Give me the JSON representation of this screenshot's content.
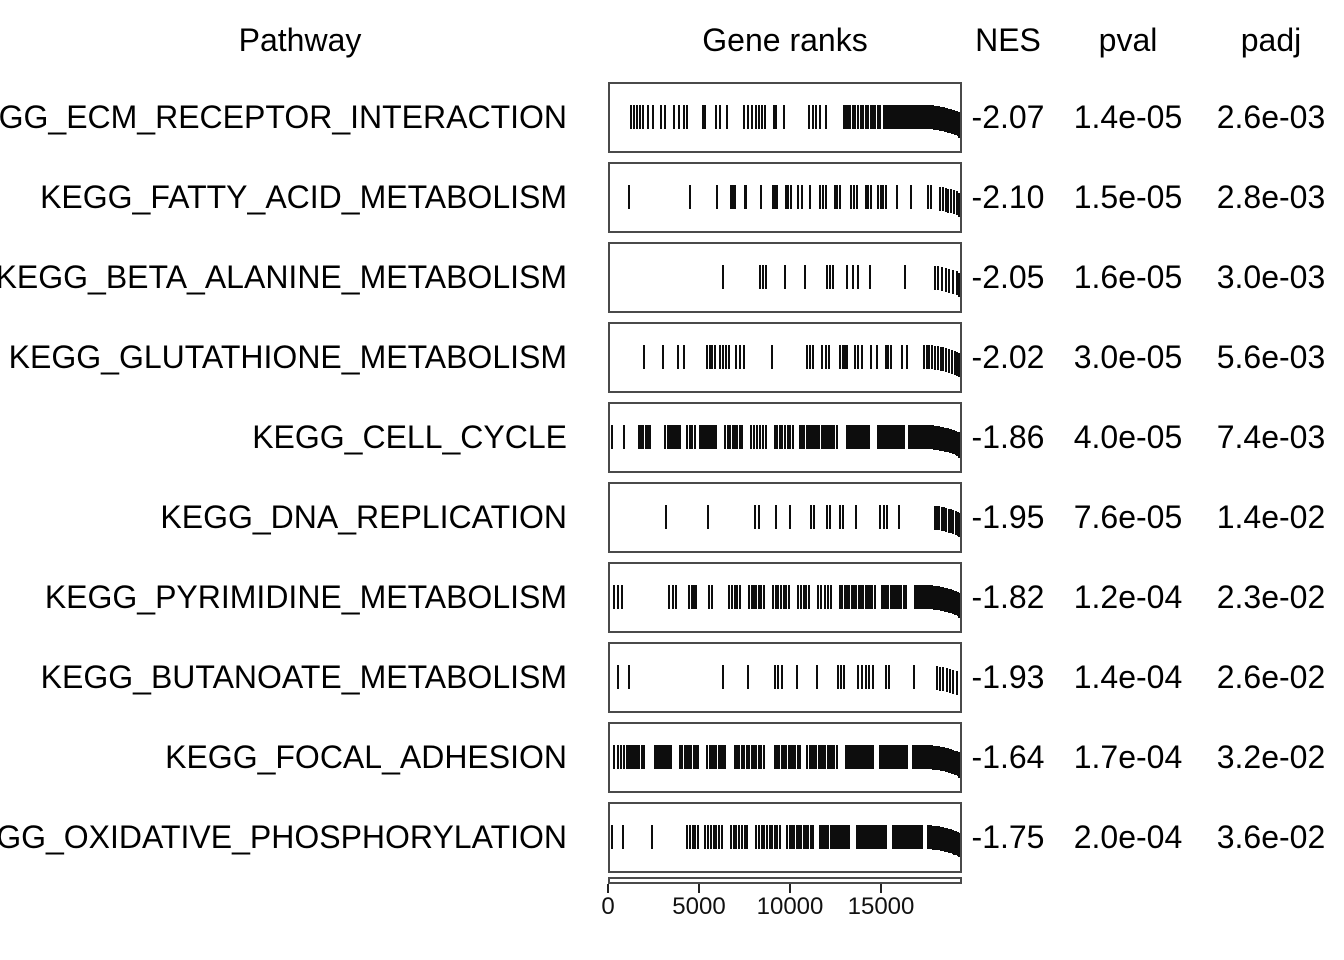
{
  "header": {
    "pathway": "Pathway",
    "gene_ranks": "Gene ranks",
    "nes": "NES",
    "pval": "pval",
    "padj": "padj"
  },
  "colors": {
    "background": "#ffffff",
    "text": "#000000",
    "panel_border": "#4a4a4a",
    "rug_tick": "#0d0d0d"
  },
  "chart_data": {
    "type": "table",
    "title": "",
    "description": "GSEA enrichment table: KEGG pathways with gene-rank rug plots, NES, pval, padj",
    "columns": [
      "Pathway",
      "Gene ranks",
      "NES",
      "pval",
      "padj"
    ],
    "x_axis": {
      "label": "",
      "ticks": [
        0,
        5000,
        10000,
        15000
      ],
      "range": [
        0,
        19450
      ]
    },
    "rows": [
      {
        "pathway": "KEGG_ECM_RECEPTOR_INTERACTION",
        "nes": "-2.07",
        "pval": "1.4e-05",
        "padj": "2.6e-03",
        "rank_clusters": [
          [
            1200,
            1700,
            4
          ],
          [
            1850,
            2400,
            3
          ],
          [
            2850,
            3100,
            2
          ],
          [
            3550,
            3850,
            2
          ],
          [
            4100,
            4300,
            2
          ],
          [
            5150,
            5250,
            2
          ],
          [
            5900,
            6100,
            2
          ],
          [
            6450,
            6500,
            1
          ],
          [
            7400,
            7850,
            3
          ],
          [
            8100,
            8550,
            4
          ],
          [
            9050,
            9150,
            2
          ],
          [
            9550,
            9650,
            1
          ],
          [
            11000,
            11600,
            4
          ],
          [
            11850,
            11950,
            1
          ],
          [
            12900,
            13500,
            6
          ],
          [
            13700,
            14100,
            4
          ],
          [
            14250,
            14900,
            6
          ],
          [
            15100,
            16600,
            22
          ],
          [
            16700,
            19400,
            48
          ]
        ]
      },
      {
        "pathway": "KEGG_FATTY_ACID_METABOLISM",
        "nes": "-2.10",
        "pval": "1.5e-05",
        "padj": "2.8e-03",
        "rank_clusters": [
          [
            1050,
            1150,
            1
          ],
          [
            4400,
            4500,
            1
          ],
          [
            5900,
            6000,
            1
          ],
          [
            6700,
            6900,
            3
          ],
          [
            7450,
            7550,
            2
          ],
          [
            8300,
            8400,
            1
          ],
          [
            9000,
            9250,
            3
          ],
          [
            9700,
            10000,
            3
          ],
          [
            10400,
            10600,
            2
          ],
          [
            11000,
            11100,
            1
          ],
          [
            11600,
            11900,
            3
          ],
          [
            12400,
            12700,
            3
          ],
          [
            13300,
            13600,
            3
          ],
          [
            14100,
            14400,
            3
          ],
          [
            14800,
            15200,
            4
          ],
          [
            15750,
            15850,
            1
          ],
          [
            16550,
            16650,
            1
          ],
          [
            17500,
            17700,
            2
          ],
          [
            18200,
            19100,
            7
          ],
          [
            19300,
            19400,
            1
          ]
        ]
      },
      {
        "pathway": "KEGG_BETA_ALANINE_METABOLISM",
        "nes": "-2.05",
        "pval": "1.6e-05",
        "padj": "3.0e-03",
        "rank_clusters": [
          [
            6200,
            6300,
            1
          ],
          [
            8300,
            8600,
            3
          ],
          [
            9600,
            9700,
            1
          ],
          [
            10700,
            10800,
            1
          ],
          [
            12000,
            12300,
            3
          ],
          [
            13100,
            13700,
            3
          ],
          [
            14300,
            14400,
            1
          ],
          [
            16200,
            16300,
            1
          ],
          [
            17900,
            19300,
            8
          ]
        ]
      },
      {
        "pathway": "KEGG_GLUTATHIONE_METABOLISM",
        "nes": "-2.02",
        "pval": "3.0e-05",
        "padj": "5.6e-03",
        "rank_clusters": [
          [
            1900,
            2000,
            1
          ],
          [
            2900,
            3000,
            1
          ],
          [
            3800,
            4100,
            2
          ],
          [
            5400,
            5800,
            4
          ],
          [
            6100,
            6600,
            4
          ],
          [
            7000,
            7400,
            3
          ],
          [
            8900,
            9000,
            1
          ],
          [
            10900,
            11200,
            3
          ],
          [
            11700,
            12100,
            3
          ],
          [
            12700,
            13100,
            4
          ],
          [
            13500,
            13900,
            3
          ],
          [
            14400,
            14700,
            2
          ],
          [
            15200,
            15500,
            3
          ],
          [
            16100,
            16400,
            2
          ],
          [
            17300,
            19300,
            14
          ]
        ]
      },
      {
        "pathway": "KEGG_CELL_CYCLE",
        "nes": "-1.86",
        "pval": "4.0e-05",
        "padj": "7.4e-03",
        "rank_clusters": [
          [
            100,
            200,
            1
          ],
          [
            750,
            850,
            1
          ],
          [
            1650,
            2250,
            6
          ],
          [
            3100,
            3900,
            8
          ],
          [
            4300,
            4700,
            4
          ],
          [
            5000,
            5900,
            9
          ],
          [
            6400,
            7300,
            8
          ],
          [
            7800,
            8600,
            6
          ],
          [
            9100,
            10100,
            8
          ],
          [
            10500,
            12500,
            18
          ],
          [
            13100,
            14300,
            12
          ],
          [
            14800,
            16200,
            16
          ],
          [
            16500,
            19400,
            35
          ]
        ]
      },
      {
        "pathway": "KEGG_DNA_REPLICATION",
        "nes": "-1.95",
        "pval": "7.6e-05",
        "padj": "1.4e-02",
        "rank_clusters": [
          [
            3100,
            3200,
            1
          ],
          [
            5400,
            5500,
            1
          ],
          [
            8000,
            8250,
            2
          ],
          [
            9100,
            9200,
            1
          ],
          [
            9900,
            10000,
            1
          ],
          [
            11100,
            11250,
            2
          ],
          [
            12000,
            12150,
            2
          ],
          [
            12700,
            12850,
            2
          ],
          [
            13500,
            13600,
            1
          ],
          [
            14900,
            15300,
            3
          ],
          [
            15900,
            16000,
            1
          ],
          [
            17900,
            19300,
            12
          ]
        ]
      },
      {
        "pathway": "KEGG_PYRIMIDINE_METABOLISM",
        "nes": "-1.82",
        "pval": "1.2e-04",
        "padj": "2.3e-02",
        "rank_clusters": [
          [
            300,
            700,
            3
          ],
          [
            3300,
            3700,
            3
          ],
          [
            4400,
            4800,
            4
          ],
          [
            5500,
            5650,
            2
          ],
          [
            6600,
            7200,
            5
          ],
          [
            7700,
            8500,
            7
          ],
          [
            9000,
            9900,
            7
          ],
          [
            10400,
            11000,
            5
          ],
          [
            11500,
            12200,
            5
          ],
          [
            12700,
            14600,
            16
          ],
          [
            15000,
            16300,
            12
          ],
          [
            16800,
            19400,
            26
          ]
        ]
      },
      {
        "pathway": "KEGG_BUTANOATE_METABOLISM",
        "nes": "-1.93",
        "pval": "1.4e-04",
        "padj": "2.6e-02",
        "rank_clusters": [
          [
            500,
            1100,
            2
          ],
          [
            6200,
            6300,
            1
          ],
          [
            7600,
            7700,
            1
          ],
          [
            9100,
            9500,
            3
          ],
          [
            10300,
            10400,
            1
          ],
          [
            11400,
            11500,
            1
          ],
          [
            12600,
            12900,
            3
          ],
          [
            13700,
            14500,
            5
          ],
          [
            15200,
            15400,
            2
          ],
          [
            16700,
            16800,
            1
          ],
          [
            18000,
            19100,
            7
          ]
        ]
      },
      {
        "pathway": "KEGG_FOCAL_ADHESION",
        "nes": "-1.64",
        "pval": "1.7e-04",
        "padj": "3.2e-02",
        "rank_clusters": [
          [
            300,
            1000,
            5
          ],
          [
            1100,
            1900,
            8
          ],
          [
            2500,
            3400,
            9
          ],
          [
            3900,
            4900,
            9
          ],
          [
            5400,
            6400,
            9
          ],
          [
            6900,
            8500,
            13
          ],
          [
            9100,
            10500,
            12
          ],
          [
            10900,
            12500,
            14
          ],
          [
            13000,
            14500,
            15
          ],
          [
            14900,
            16400,
            17
          ],
          [
            16700,
            19400,
            40
          ]
        ]
      },
      {
        "pathway": "KEGG_OXIDATIVE_PHOSPHORYLATION",
        "nes": "-1.75",
        "pval": "2.0e-04",
        "padj": "3.6e-02",
        "rank_clusters": [
          [
            100,
            200,
            1
          ],
          [
            700,
            800,
            1
          ],
          [
            2300,
            2400,
            1
          ],
          [
            4300,
            4900,
            5
          ],
          [
            5300,
            6200,
            7
          ],
          [
            6700,
            7600,
            7
          ],
          [
            8100,
            9400,
            10
          ],
          [
            9800,
            11200,
            12
          ],
          [
            11600,
            13200,
            15
          ],
          [
            13600,
            15200,
            16
          ],
          [
            15600,
            17200,
            17
          ],
          [
            17500,
            19300,
            18
          ]
        ]
      }
    ]
  }
}
